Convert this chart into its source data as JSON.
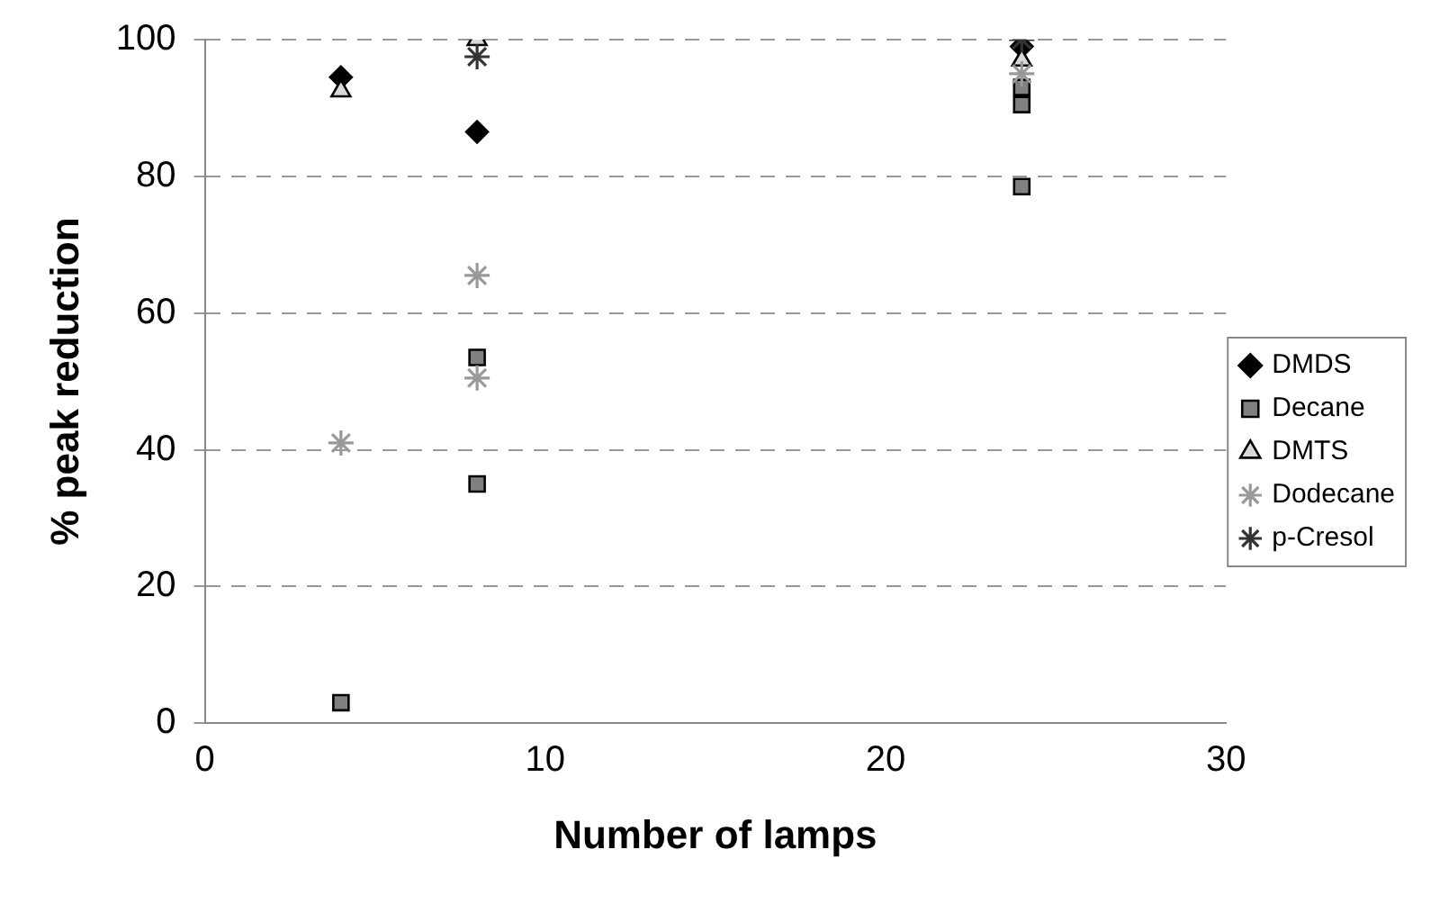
{
  "chart_data": {
    "type": "scatter",
    "xlabel": "Number of lamps",
    "ylabel": "% peak reduction",
    "xlim": [
      0,
      30
    ],
    "xticks": [
      0,
      10,
      20,
      30
    ],
    "ylim": [
      0,
      100
    ],
    "yticks": [
      0,
      20,
      40,
      60,
      80,
      100
    ],
    "grid": "y",
    "legend": "right",
    "series": [
      {
        "name": "DMDS",
        "color": "#000000",
        "marker": "diamond",
        "x": [
          4,
          8,
          24
        ],
        "values": [
          94.5,
          86.5,
          99
        ]
      },
      {
        "name": "Decane",
        "color": "#808080",
        "marker": "square",
        "x": [
          4,
          8,
          8,
          24,
          24,
          24
        ],
        "values": [
          3,
          53.5,
          35,
          93,
          90.5,
          78.5
        ]
      },
      {
        "name": "DMTS",
        "color": "#d9d9d9",
        "marker": "triangle",
        "x": [
          4,
          8,
          24
        ],
        "values": [
          92.5,
          100,
          97
        ]
      },
      {
        "name": "Dodecane",
        "color": "#999999",
        "marker": "cross",
        "x": [
          4,
          8,
          8,
          24
        ],
        "values": [
          41,
          65.5,
          50.5,
          95
        ]
      },
      {
        "name": "p-Cresol",
        "color": "#333333",
        "marker": "cross",
        "x": [
          8,
          24
        ],
        "values": [
          97.5,
          100
        ]
      }
    ]
  }
}
